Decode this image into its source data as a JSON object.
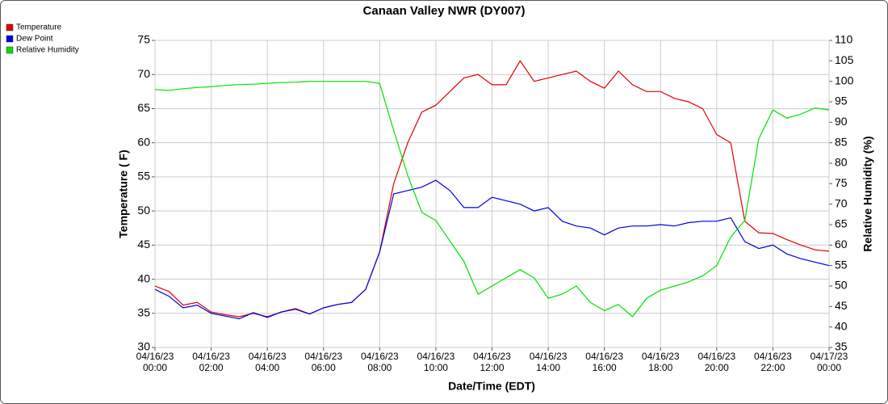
{
  "chart_data": {
    "type": "line",
    "title": "Canaan Valley NWR (DY007)",
    "xlabel": "Date/Time (EDT)",
    "ylabel": "Temperature ( F)",
    "y2label": "Relative Humidity (%)",
    "x": [
      "04/16/23 00:00",
      "04/16/23 00:30",
      "04/16/23 01:00",
      "04/16/23 01:30",
      "04/16/23 02:00",
      "04/16/23 02:30",
      "04/16/23 03:00",
      "04/16/23 03:30",
      "04/16/23 04:00",
      "04/16/23 04:30",
      "04/16/23 05:00",
      "04/16/23 05:30",
      "04/16/23 06:00",
      "04/16/23 06:30",
      "04/16/23 07:00",
      "04/16/23 07:30",
      "04/16/23 08:00",
      "04/16/23 08:30",
      "04/16/23 09:00",
      "04/16/23 09:30",
      "04/16/23 10:00",
      "04/16/23 10:30",
      "04/16/23 11:00",
      "04/16/23 11:30",
      "04/16/23 12:00",
      "04/16/23 12:30",
      "04/16/23 13:00",
      "04/16/23 13:30",
      "04/16/23 14:00",
      "04/16/23 14:30",
      "04/16/23 15:00",
      "04/16/23 15:30",
      "04/16/23 16:00",
      "04/16/23 16:30",
      "04/16/23 17:00",
      "04/16/23 17:30",
      "04/16/23 18:00",
      "04/16/23 18:30",
      "04/16/23 19:00",
      "04/16/23 19:30",
      "04/16/23 20:00",
      "04/16/23 20:30",
      "04/16/23 21:00",
      "04/16/23 21:30",
      "04/16/23 22:00",
      "04/16/23 22:30",
      "04/16/23 23:00",
      "04/16/23 23:30",
      "04/17/23 00:00"
    ],
    "series": [
      {
        "name": "Temperature",
        "color": "#e00000",
        "values": [
          39,
          38.2,
          36.2,
          36.6,
          35.2,
          34.8,
          34.5,
          35.0,
          34.5,
          35.2,
          35.7,
          34.9,
          35.8,
          36.3,
          36.6,
          38.5,
          44,
          54,
          60,
          64.5,
          65.5,
          67.5,
          69.5,
          70,
          68.5,
          68.5,
          72,
          69,
          69.5,
          70,
          70.5,
          69,
          68,
          70.5,
          68.5,
          67.5,
          67.5,
          66.5,
          66,
          65,
          61.2,
          60,
          48.5,
          46.8,
          46.7,
          45.8,
          45,
          44.3,
          44.1
        ]
      },
      {
        "name": "Dew Point",
        "color": "#0000e0",
        "values": [
          38.5,
          37.5,
          35.8,
          36.2,
          35,
          34.6,
          34.2,
          35.1,
          34.4,
          35.2,
          35.6,
          34.9,
          35.8,
          36.3,
          36.6,
          38.5,
          44,
          52.5,
          53,
          53.5,
          54.5,
          53,
          50.5,
          50.5,
          52,
          51.5,
          51,
          50,
          50.5,
          48.5,
          47.8,
          47.5,
          46.5,
          47.5,
          47.8,
          47.8,
          48,
          47.8,
          48.3,
          48.5,
          48.5,
          49,
          45.5,
          44.5,
          45,
          43.7,
          43,
          42.5,
          42
        ]
      },
      {
        "name": "Relative Humidity",
        "color": "#00e000",
        "axis": "y2",
        "values": [
          98,
          97.8,
          98.2,
          98.5,
          98.7,
          99,
          99.2,
          99.3,
          99.5,
          99.7,
          99.8,
          100,
          100,
          100,
          100,
          100,
          99.5,
          88,
          77,
          68,
          66,
          61,
          56,
          48,
          50,
          52,
          54,
          52,
          47,
          48,
          50,
          46,
          44,
          45.5,
          42.5,
          47,
          49,
          50,
          51,
          52.5,
          55,
          62,
          66,
          86,
          93,
          91,
          92,
          93.5,
          93
        ]
      }
    ],
    "xlim": [
      "04/16/23 00:00",
      "04/17/23 00:00"
    ],
    "xticks": [
      "04/16/23 00:00",
      "04/16/23 02:00",
      "04/16/23 04:00",
      "04/16/23 06:00",
      "04/16/23 08:00",
      "04/16/23 10:00",
      "04/16/23 12:00",
      "04/16/23 14:00",
      "04/16/23 16:00",
      "04/16/23 18:00",
      "04/16/23 20:00",
      "04/16/23 22:00",
      "04/17/23 00:00"
    ],
    "ylim": [
      30,
      75
    ],
    "yticks": [
      30,
      35,
      40,
      45,
      50,
      55,
      60,
      65,
      70,
      75
    ],
    "y2lim": [
      35,
      110
    ],
    "y2ticks": [
      35,
      40,
      45,
      50,
      55,
      60,
      65,
      70,
      75,
      80,
      85,
      90,
      95,
      100,
      105,
      110
    ],
    "grid": true,
    "legend": "top-left"
  }
}
